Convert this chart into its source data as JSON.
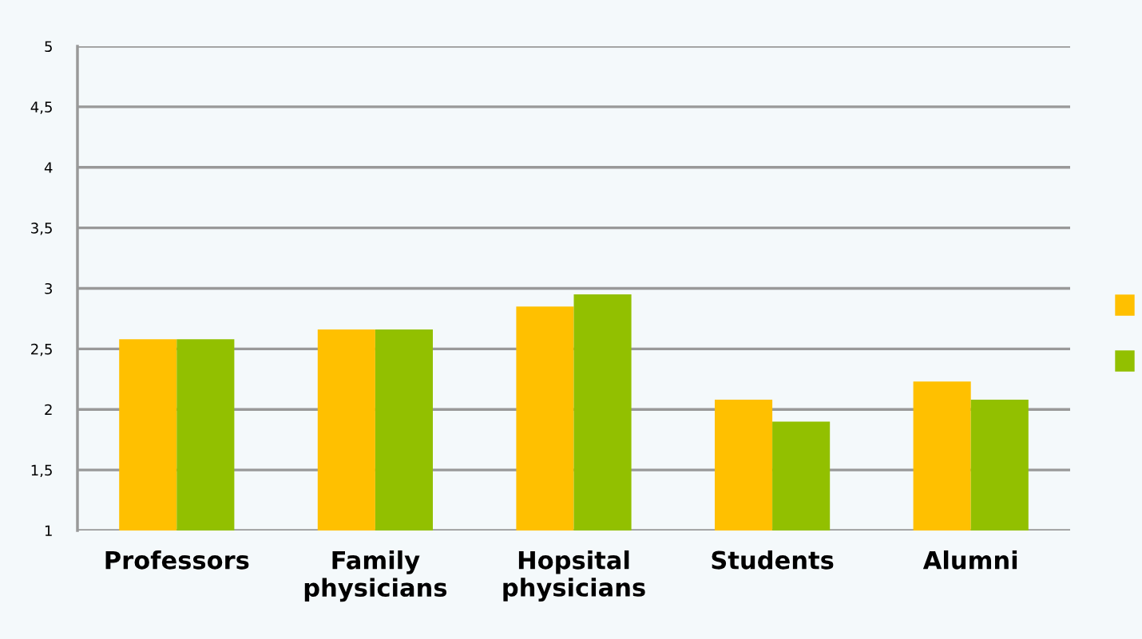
{
  "chart_data": {
    "type": "bar",
    "categories": [
      "Professors",
      "Family\nphysicians",
      "Hopsital\nphysicians",
      "Students",
      "Alumni"
    ],
    "series": [
      {
        "color": "#ffc000",
        "values": [
          2.58,
          2.66,
          2.85,
          2.08,
          2.23
        ]
      },
      {
        "color": "#92c000",
        "values": [
          2.58,
          2.66,
          2.95,
          1.9,
          2.08
        ]
      }
    ],
    "ylim": [
      1,
      5
    ],
    "yticks": [
      1,
      {
        "value": 1.5,
        "label": "1,5"
      },
      2,
      {
        "value": 2.5,
        "label": "2,5"
      },
      3,
      {
        "value": 3.5,
        "label": "3,5"
      },
      4,
      {
        "value": 4.5,
        "label": "4,5"
      },
      5
    ],
    "grid": "y"
  }
}
